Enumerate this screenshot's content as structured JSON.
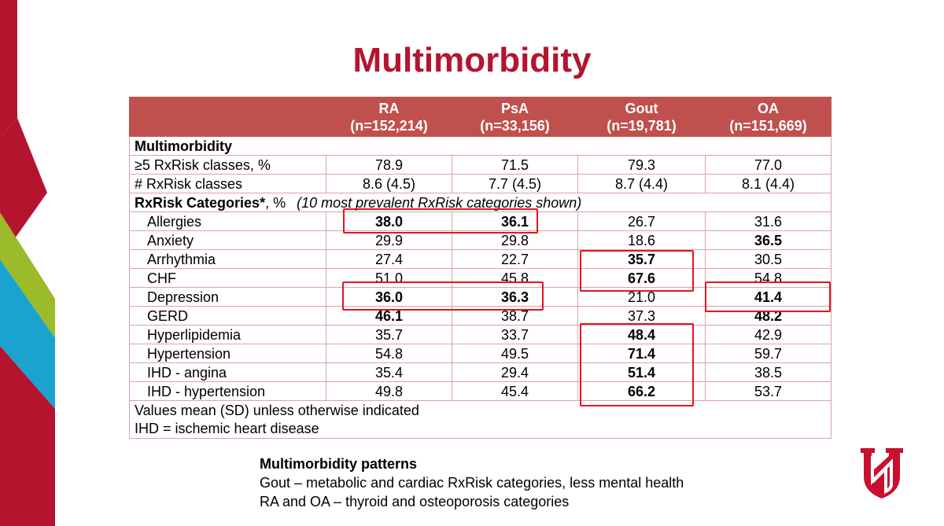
{
  "title": "Multimorbidity",
  "colors": {
    "accent": "#b5142f",
    "header_bg": "#c0504d",
    "highlight": "#e8141e"
  },
  "table": {
    "columns": [
      {
        "name": "RA",
        "n": "(n=152,214)"
      },
      {
        "name": "PsA",
        "n": "(n=33,156)"
      },
      {
        "name": "Gout",
        "n": "(n=19,781)"
      },
      {
        "name": "OA",
        "n": "(n=151,669)"
      }
    ],
    "section1": "Multimorbidity",
    "summary_rows": [
      {
        "label": "≥5 RxRisk classes, %",
        "values": [
          "78.9",
          "71.5",
          "79.3",
          "77.0"
        ]
      },
      {
        "label": "# RxRisk classes",
        "values": [
          "8.6 (4.5)",
          "7.7 (4.5)",
          "8.7 (4.4)",
          "8.1 (4.4)"
        ]
      }
    ],
    "section2_label": "RxRisk Categories*",
    "section2_suffix": ", %",
    "section2_note": "(10 most prevalent RxRisk categories shown)",
    "category_rows": [
      {
        "label": "Allergies",
        "values": [
          "38.0",
          "36.1",
          "26.7",
          "31.6"
        ]
      },
      {
        "label": "Anxiety",
        "values": [
          "29.9",
          "29.8",
          "18.6",
          "36.5"
        ]
      },
      {
        "label": "Arrhythmia",
        "values": [
          "27.4",
          "22.7",
          "35.7",
          "30.5"
        ]
      },
      {
        "label": "CHF",
        "values": [
          "51.0",
          "45.8",
          "67.6",
          "54.8"
        ]
      },
      {
        "label": "Depression",
        "values": [
          "36.0",
          "36.3",
          "21.0",
          "41.4"
        ]
      },
      {
        "label": "GERD",
        "values": [
          "46.1",
          "38.7",
          "37.3",
          "48.2"
        ]
      },
      {
        "label": "Hyperlipidemia",
        "values": [
          "35.7",
          "33.7",
          "48.4",
          "42.9"
        ]
      },
      {
        "label": "Hypertension",
        "values": [
          "54.8",
          "49.5",
          "71.4",
          "59.7"
        ]
      },
      {
        "label": "IHD - angina",
        "values": [
          "35.4",
          "29.4",
          "51.4",
          "38.5"
        ]
      },
      {
        "label": "IHD - hypertension",
        "values": [
          "49.8",
          "45.4",
          "66.2",
          "53.7"
        ]
      }
    ],
    "footnote1": "Values mean (SD) unless otherwise indicated",
    "footnote2": "IHD = ischemic heart disease"
  },
  "patterns": {
    "heading": "Multimorbidity patterns",
    "line1": "Gout – metabolic and cardiac RxRisk categories, less mental health",
    "line2": "RA and OA – thyroid and osteoporosis categories"
  }
}
